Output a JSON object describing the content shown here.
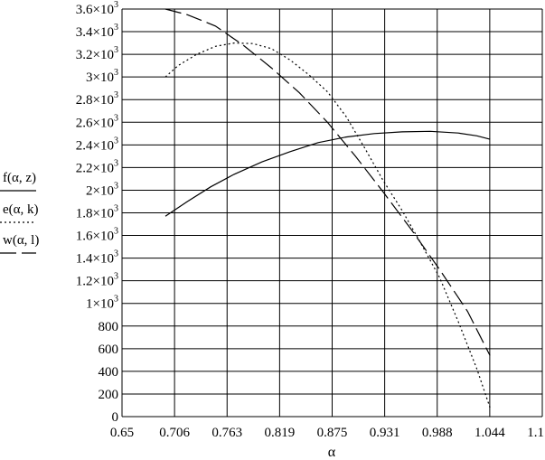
{
  "chart_data": {
    "type": "line",
    "xlabel": "α",
    "ylabel": "",
    "xlim": [
      0.65,
      1.1
    ],
    "ylim": [
      0,
      3600
    ],
    "x_ticks": [
      "0.65",
      "0.706",
      "0.763",
      "0.819",
      "0.875",
      "0.931",
      "0.988",
      "1.044",
      "1.1"
    ],
    "y_ticks": [
      {
        "base": "0",
        "exp": ""
      },
      {
        "base": "200",
        "exp": ""
      },
      {
        "base": "400",
        "exp": ""
      },
      {
        "base": "600",
        "exp": ""
      },
      {
        "base": "800",
        "exp": ""
      },
      {
        "base": "1×10",
        "exp": "3"
      },
      {
        "base": "1.2×10",
        "exp": "3"
      },
      {
        "base": "1.4×10",
        "exp": "3"
      },
      {
        "base": "1.6×10",
        "exp": "3"
      },
      {
        "base": "1.8×10",
        "exp": "3"
      },
      {
        "base": "2×10",
        "exp": "3"
      },
      {
        "base": "2.2×10",
        "exp": "3"
      },
      {
        "base": "2.4×10",
        "exp": "3"
      },
      {
        "base": "2.6×10",
        "exp": "3"
      },
      {
        "base": "2.8×10",
        "exp": "3"
      },
      {
        "base": "3×10",
        "exp": "3"
      },
      {
        "base": "3.2×10",
        "exp": "3"
      },
      {
        "base": "3.4×10",
        "exp": "3"
      },
      {
        "base": "3.6×10",
        "exp": "3"
      }
    ],
    "grid": true,
    "legend_placement": "left",
    "series": [
      {
        "name": "f(α, z)",
        "style": "solid",
        "x": [
          0.6965,
          0.72,
          0.745,
          0.77,
          0.8,
          0.83,
          0.86,
          0.89,
          0.92,
          0.95,
          0.98,
          1.01,
          1.03,
          1.044
        ],
        "y": [
          1770,
          1900,
          2030,
          2140,
          2250,
          2340,
          2420,
          2470,
          2500,
          2515,
          2520,
          2505,
          2480,
          2450
        ]
      },
      {
        "name": "e(α, k)",
        "style": "dotted",
        "x": [
          0.6965,
          0.71,
          0.73,
          0.75,
          0.77,
          0.79,
          0.81,
          0.83,
          0.85,
          0.87,
          0.89,
          0.91,
          0.93,
          0.95,
          0.97,
          0.99,
          1.01,
          1.03,
          1.044
        ],
        "y": [
          3000,
          3100,
          3200,
          3270,
          3300,
          3295,
          3250,
          3150,
          3020,
          2870,
          2650,
          2370,
          2080,
          1820,
          1530,
          1230,
          840,
          420,
          80
        ]
      },
      {
        "name": "w(α, l)",
        "style": "dashed",
        "x": [
          0.6965,
          0.72,
          0.75,
          0.78,
          0.81,
          0.84,
          0.87,
          0.9,
          0.93,
          0.96,
          0.99,
          1.02,
          1.044
        ],
        "y": [
          3600,
          3550,
          3450,
          3280,
          3080,
          2860,
          2600,
          2300,
          1980,
          1650,
          1300,
          930,
          540
        ]
      }
    ]
  }
}
